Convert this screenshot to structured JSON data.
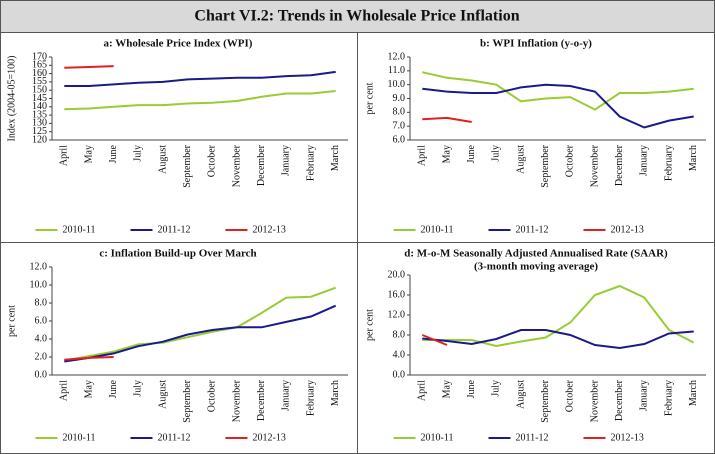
{
  "title": "Chart VI.2: Trends in Wholesale Price Inflation",
  "chart_data": [
    {
      "type": "line",
      "title": "a: Wholesale Price Index (WPI)",
      "y_label": "Index (2004-05=100)",
      "categories": [
        "April",
        "May",
        "June",
        "July",
        "August",
        "September",
        "October",
        "November",
        "December",
        "January",
        "February",
        "March"
      ],
      "series": [
        {
          "name": "2010-11",
          "color": "#99cc33",
          "values": [
            138.5,
            139,
            140,
            141,
            141,
            142,
            142.5,
            143.5,
            146,
            148,
            148,
            149.5
          ]
        },
        {
          "name": "2011-12",
          "color": "#1a1a8c",
          "values": [
            152.5,
            152.5,
            153.5,
            154.5,
            155,
            156.5,
            157,
            157.5,
            157.5,
            158.5,
            159,
            161
          ]
        },
        {
          "name": "2012-13",
          "color": "#e32020",
          "values": [
            163.5,
            164,
            164.5,
            null,
            null,
            null,
            null,
            null,
            null,
            null,
            null,
            null
          ]
        }
      ],
      "ylim": [
        120,
        170
      ],
      "yticks": [
        120,
        125,
        130,
        135,
        140,
        145,
        150,
        155,
        160,
        165,
        170
      ]
    },
    {
      "type": "line",
      "title": "b: WPI Inflation (y-o-y)",
      "y_label": "per cent",
      "categories": [
        "April",
        "May",
        "June",
        "July",
        "August",
        "September",
        "October",
        "November",
        "December",
        "January",
        "February",
        "March"
      ],
      "series": [
        {
          "name": "2010-11",
          "color": "#99cc33",
          "values": [
            10.9,
            10.5,
            10.3,
            10.0,
            8.8,
            9.0,
            9.1,
            8.2,
            9.4,
            9.4,
            9.5,
            9.7
          ]
        },
        {
          "name": "2011-12",
          "color": "#1a1a8c",
          "values": [
            9.7,
            9.5,
            9.4,
            9.4,
            9.8,
            10.0,
            9.9,
            9.5,
            7.7,
            6.9,
            7.4,
            7.7
          ]
        },
        {
          "name": "2012-13",
          "color": "#e32020",
          "values": [
            7.5,
            7.6,
            7.3,
            null,
            null,
            null,
            null,
            null,
            null,
            null,
            null,
            null
          ]
        }
      ],
      "ylim": [
        6,
        12
      ],
      "yticks": [
        {
          "value": 6,
          "label": "6.0"
        },
        {
          "value": 7,
          "label": "7.0"
        },
        {
          "value": 8,
          "label": "8.0"
        },
        {
          "value": 9,
          "label": "9.0"
        },
        {
          "value": 10,
          "label": "10.0"
        },
        {
          "value": 11,
          "label": "11.0"
        },
        {
          "value": 12,
          "label": "12.0"
        }
      ]
    },
    {
      "type": "line",
      "title": "c: Inflation Build-up Over March",
      "y_label": "per cent",
      "categories": [
        "April",
        "May",
        "June",
        "July",
        "August",
        "September",
        "October",
        "November",
        "December",
        "January",
        "February",
        "March"
      ],
      "series": [
        {
          "name": "2010-11",
          "color": "#99cc33",
          "values": [
            1.6,
            2.1,
            2.6,
            3.4,
            3.6,
            4.2,
            4.8,
            5.3,
            6.9,
            8.6,
            8.7,
            9.7
          ]
        },
        {
          "name": "2011-12",
          "color": "#1a1a8c",
          "values": [
            1.5,
            1.9,
            2.4,
            3.2,
            3.7,
            4.5,
            5.0,
            5.3,
            5.3,
            5.9,
            6.5,
            7.7
          ]
        },
        {
          "name": "2012-13",
          "color": "#e32020",
          "values": [
            1.7,
            1.9,
            2.0,
            null,
            null,
            null,
            null,
            null,
            null,
            null,
            null,
            null
          ]
        }
      ],
      "ylim": [
        0,
        12
      ],
      "yticks": [
        {
          "value": 0,
          "label": "0.0"
        },
        {
          "value": 2,
          "label": "2.0"
        },
        {
          "value": 4,
          "label": "4.0"
        },
        {
          "value": 6,
          "label": "6.0"
        },
        {
          "value": 8,
          "label": "8.0"
        },
        {
          "value": 10,
          "label": "10.0"
        },
        {
          "value": 12,
          "label": "12.0"
        }
      ]
    },
    {
      "type": "line",
      "title": "d: M-o-M Seasonally Adjusted Annualised Rate (SAAR)",
      "subtitle": "(3-month moving average)",
      "y_label": "per cent",
      "categories": [
        "April",
        "May",
        "June",
        "July",
        "August",
        "September",
        "October",
        "November",
        "December",
        "January",
        "February",
        "March"
      ],
      "series": [
        {
          "name": "2010-11",
          "color": "#99cc33",
          "values": [
            7.0,
            7.0,
            7.0,
            5.8,
            6.7,
            7.5,
            10.5,
            16.0,
            17.8,
            15.5,
            9.0,
            6.5
          ]
        },
        {
          "name": "2011-12",
          "color": "#1a1a8c",
          "values": [
            7.3,
            6.8,
            6.2,
            7.2,
            9.0,
            9.0,
            8.0,
            6.0,
            5.4,
            6.2,
            8.3,
            8.7
          ]
        },
        {
          "name": "2012-13",
          "color": "#e32020",
          "values": [
            8.0,
            6.0,
            null,
            null,
            null,
            null,
            null,
            null,
            null,
            null,
            null,
            null
          ]
        }
      ],
      "ylim": [
        0,
        20
      ],
      "yticks": [
        {
          "value": 0,
          "label": "0.0"
        },
        {
          "value": 4,
          "label": "4.0"
        },
        {
          "value": 8,
          "label": "8.0"
        },
        {
          "value": 12,
          "label": "12.0"
        },
        {
          "value": 16,
          "label": "16.0"
        },
        {
          "value": 20,
          "label": "20.0"
        }
      ]
    }
  ]
}
